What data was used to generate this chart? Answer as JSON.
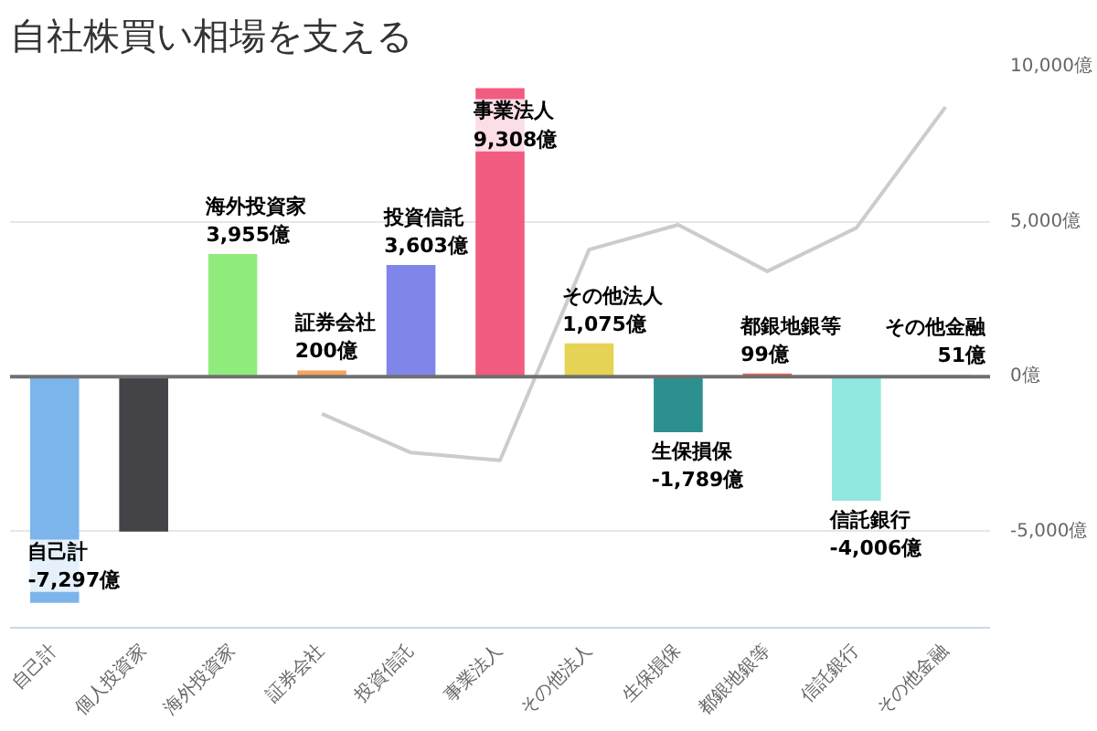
{
  "chart_data": {
    "type": "bar",
    "title": "自社株買い相場を支える",
    "categories": [
      "自己計",
      "個人投資家",
      "海外投資家",
      "証券会社",
      "投資信託",
      "事業法人",
      "その他法人",
      "生保損保",
      "都銀地銀等",
      "信託銀行",
      "その他金融"
    ],
    "values": [
      -7297,
      -5000,
      3955,
      200,
      3603,
      9308,
      1075,
      -1789,
      99,
      -4006,
      51
    ],
    "colors": [
      "#7cb5ec",
      "#434348",
      "#90ed7d",
      "#f7a35c",
      "#8085e9",
      "#f15c80",
      "#e4d354",
      "#2b908f",
      "#f45b5b",
      "#91e8e1",
      "#7cb5ec"
    ],
    "value_labels": [
      "-7,297億",
      null,
      "3,955億",
      "200億",
      "3,603億",
      "9,308億",
      "1,075億",
      "-1,789億",
      "99億",
      "-4,006億",
      "51億"
    ],
    "series": [
      {
        "type": "line",
        "color": "#cccccc",
        "values": [
          null,
          null,
          null,
          -1200,
          -2450,
          -2700,
          4100,
          4900,
          3400,
          4800,
          8700
        ]
      }
    ],
    "ylim": [
      -8100,
      10000
    ],
    "yticks": [
      {
        "value": -5000,
        "label": "-5,000億"
      },
      {
        "value": 0,
        "label": "0億"
      },
      {
        "value": 5000,
        "label": "5,000億"
      },
      {
        "value": 10000,
        "label": "10,000億"
      }
    ],
    "grid": "y"
  }
}
